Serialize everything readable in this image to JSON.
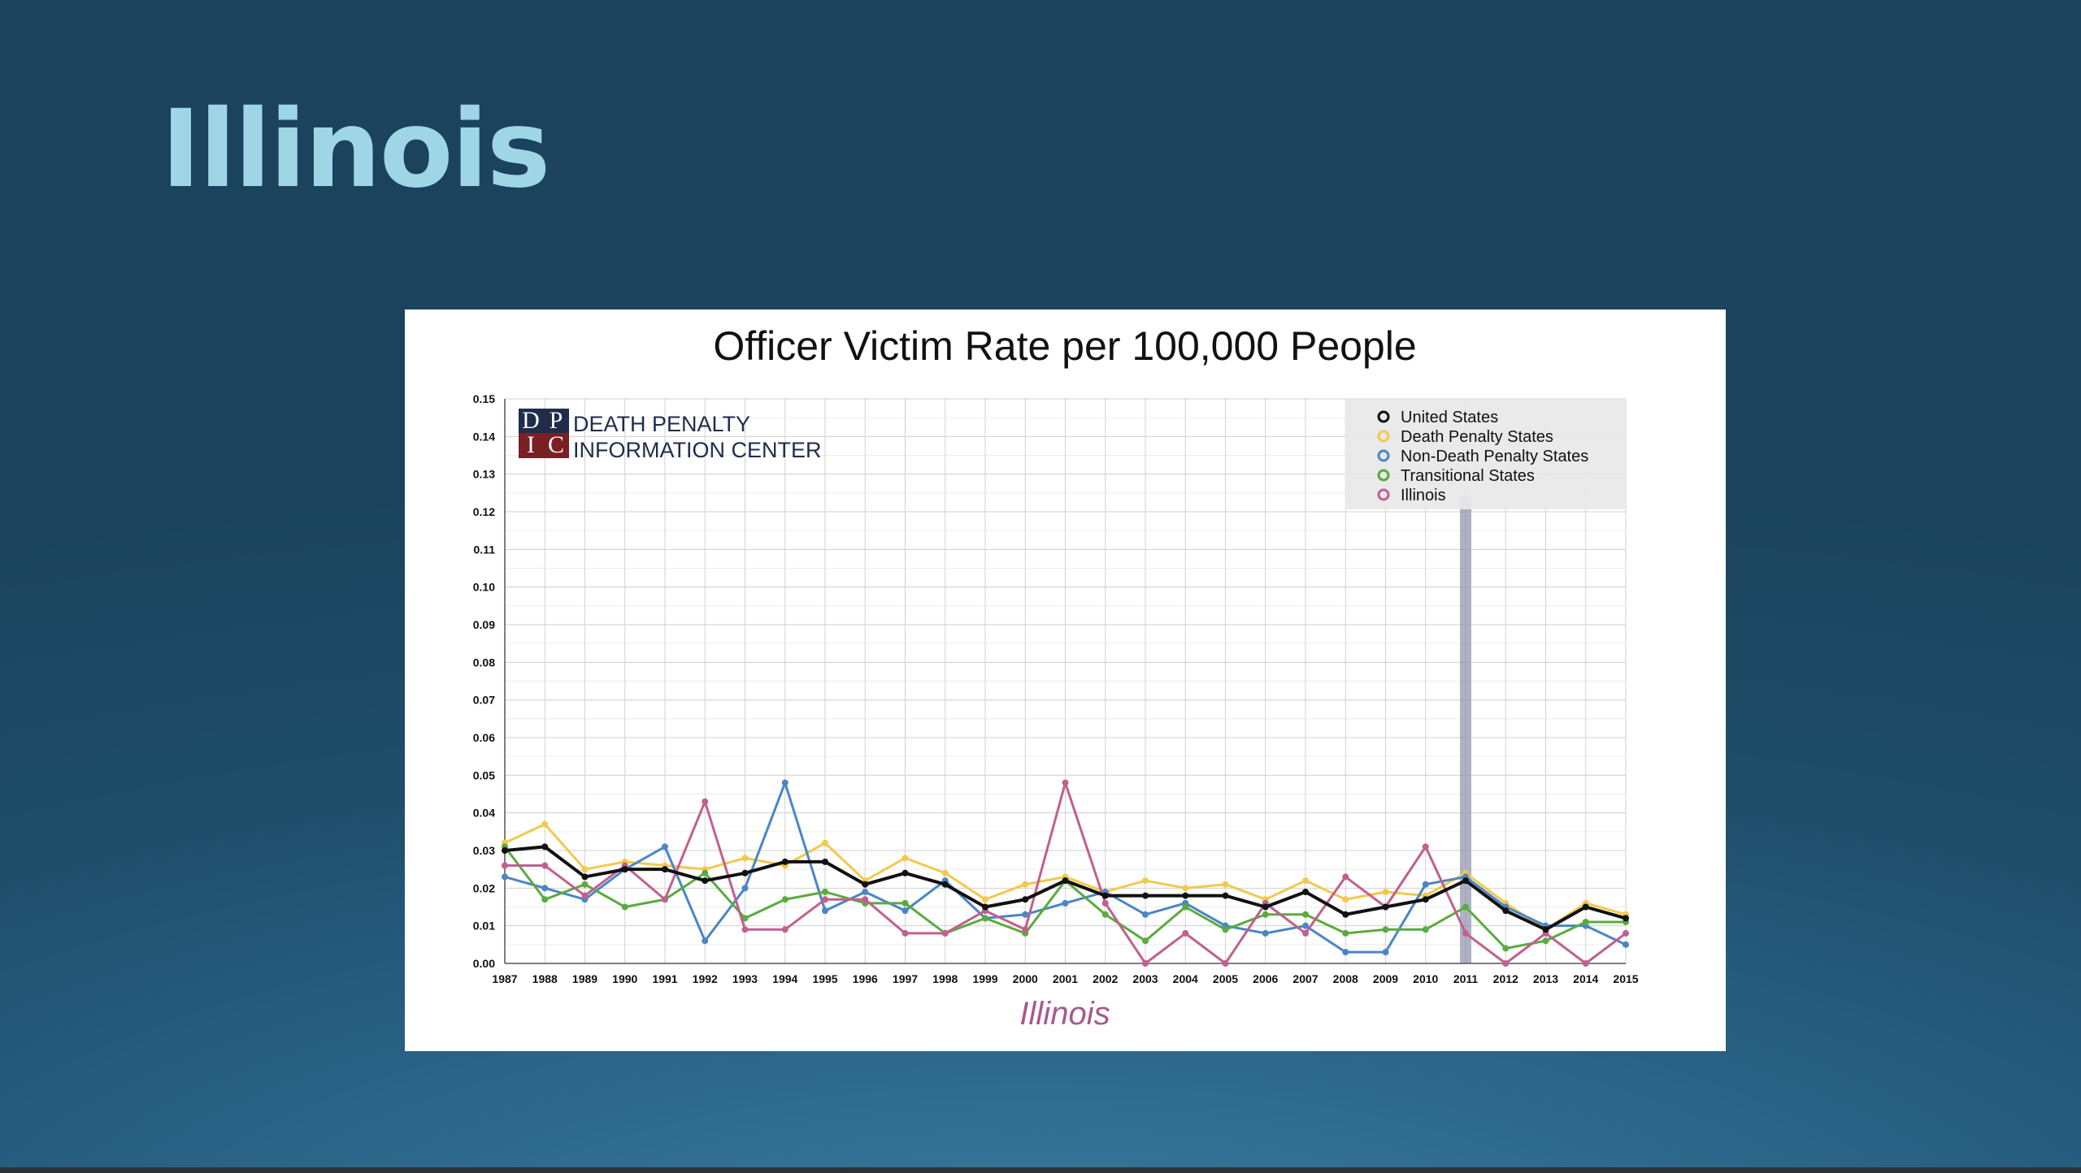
{
  "slide": {
    "title": "Illinois"
  },
  "logo": {
    "letters": [
      "D",
      "P",
      "I",
      "C"
    ],
    "line1": "DEATH PENALTY",
    "line2": "INFORMATION CENTER"
  },
  "chart_data": {
    "type": "line",
    "title": "Officer Victim Rate per 100,000 People",
    "xlabel": "Illinois",
    "ylabel": "",
    "ylim": [
      0,
      0.15
    ],
    "y_ticks": [
      "0.00",
      "0.01",
      "0.02",
      "0.03",
      "0.04",
      "0.05",
      "0.06",
      "0.07",
      "0.08",
      "0.09",
      "0.10",
      "0.11",
      "0.12",
      "0.13",
      "0.14",
      "0.15"
    ],
    "grid": true,
    "legend_position": "top-right",
    "highlight_year": "2011",
    "categories": [
      "1987",
      "1988",
      "1989",
      "1990",
      "1991",
      "1992",
      "1993",
      "1994",
      "1995",
      "1996",
      "1997",
      "1998",
      "1999",
      "2000",
      "2001",
      "2002",
      "2003",
      "2004",
      "2005",
      "2006",
      "2007",
      "2008",
      "2009",
      "2010",
      "2011",
      "2012",
      "2013",
      "2014",
      "2015"
    ],
    "series": [
      {
        "name": "Death Penalty States",
        "color": "#f2c94c",
        "values": [
          0.032,
          0.037,
          0.025,
          0.027,
          0.026,
          0.025,
          0.028,
          0.026,
          0.032,
          0.022,
          0.028,
          0.024,
          0.017,
          0.021,
          0.023,
          0.019,
          0.022,
          0.02,
          0.021,
          0.017,
          0.022,
          0.017,
          0.019,
          0.018,
          0.024,
          0.016,
          0.009,
          0.016,
          0.013
        ]
      },
      {
        "name": "Non-Death Penalty States",
        "color": "#4a86c5",
        "values": [
          0.023,
          0.02,
          0.017,
          0.025,
          0.031,
          0.006,
          0.02,
          0.048,
          0.014,
          0.019,
          0.014,
          0.022,
          0.012,
          0.013,
          0.016,
          0.019,
          0.013,
          0.016,
          0.01,
          0.008,
          0.01,
          0.003,
          0.003,
          0.021,
          0.023,
          0.015,
          0.01,
          0.01,
          0.005
        ]
      },
      {
        "name": "Transitional States",
        "color": "#5aab3e",
        "values": [
          0.031,
          0.017,
          0.021,
          0.015,
          0.017,
          0.024,
          0.012,
          0.017,
          0.019,
          0.016,
          0.016,
          0.008,
          0.012,
          0.008,
          0.022,
          0.013,
          0.006,
          0.015,
          0.009,
          0.013,
          0.013,
          0.008,
          0.009,
          0.009,
          0.015,
          0.004,
          0.006,
          0.011,
          0.011
        ]
      },
      {
        "name": "Illinois",
        "color": "#c0608f",
        "values": [
          0.026,
          0.026,
          0.018,
          0.026,
          0.017,
          0.043,
          0.009,
          0.009,
          0.017,
          0.017,
          0.008,
          0.008,
          0.014,
          0.009,
          0.048,
          0.016,
          0.0,
          0.008,
          0.0,
          0.016,
          0.008,
          0.023,
          0.015,
          0.031,
          0.008,
          0.0,
          0.008,
          0.0,
          0.008
        ]
      },
      {
        "name": "United States",
        "color": "#111111",
        "values": [
          0.03,
          0.031,
          0.023,
          0.025,
          0.025,
          0.022,
          0.024,
          0.027,
          0.027,
          0.021,
          0.024,
          0.021,
          0.015,
          0.017,
          0.022,
          0.018,
          0.018,
          0.018,
          0.018,
          0.015,
          0.019,
          0.013,
          0.015,
          0.017,
          0.022,
          0.014,
          0.009,
          0.015,
          0.012
        ]
      }
    ],
    "legend_order": [
      "United States",
      "Death Penalty States",
      "Non-Death Penalty States",
      "Transitional States",
      "Illinois"
    ]
  }
}
